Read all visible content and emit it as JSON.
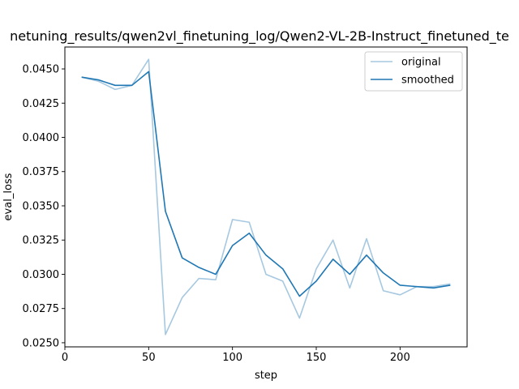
{
  "chart_data": {
    "type": "line",
    "title": "netuning_results/qwen2vl_finetuning_log/Qwen2-VL-2B-Instruct_finetuned_te",
    "xlabel": "step",
    "ylabel": "eval_loss",
    "xlim": [
      0,
      240
    ],
    "ylim": [
      0.0247,
      0.0466
    ],
    "xticks": [
      "0",
      "50",
      "100",
      "150",
      "200"
    ],
    "xtick_values": [
      0,
      50,
      100,
      150,
      200
    ],
    "yticks": [
      "0.0250",
      "0.0275",
      "0.0300",
      "0.0325",
      "0.0350",
      "0.0375",
      "0.0400",
      "0.0425",
      "0.0450"
    ],
    "ytick_values": [
      0.025,
      0.0275,
      0.03,
      0.0325,
      0.035,
      0.0375,
      0.04,
      0.0425,
      0.045
    ],
    "grid": false,
    "legend_position": "top-right",
    "x": [
      10,
      20,
      30,
      40,
      50,
      60,
      70,
      80,
      90,
      100,
      110,
      120,
      130,
      140,
      150,
      160,
      170,
      180,
      190,
      200,
      210,
      220,
      230
    ],
    "series": [
      {
        "name": "original",
        "color": "#a6c8e0",
        "values": [
          0.0444,
          0.0441,
          0.0435,
          0.0438,
          0.0457,
          0.0256,
          0.0283,
          0.0297,
          0.0296,
          0.034,
          0.0338,
          0.03,
          0.0295,
          0.0268,
          0.0304,
          0.0325,
          0.029,
          0.0326,
          0.0288,
          0.0285,
          0.0291,
          0.0291,
          0.0293
        ]
      },
      {
        "name": "smoothed",
        "color": "#1f77b4",
        "values": [
          0.0444,
          0.0442,
          0.0438,
          0.0438,
          0.0448,
          0.0346,
          0.0312,
          0.0305,
          0.03,
          0.0321,
          0.033,
          0.0314,
          0.0304,
          0.0284,
          0.0295,
          0.0311,
          0.03,
          0.0314,
          0.0301,
          0.0292,
          0.0291,
          0.029,
          0.0292
        ]
      }
    ]
  }
}
